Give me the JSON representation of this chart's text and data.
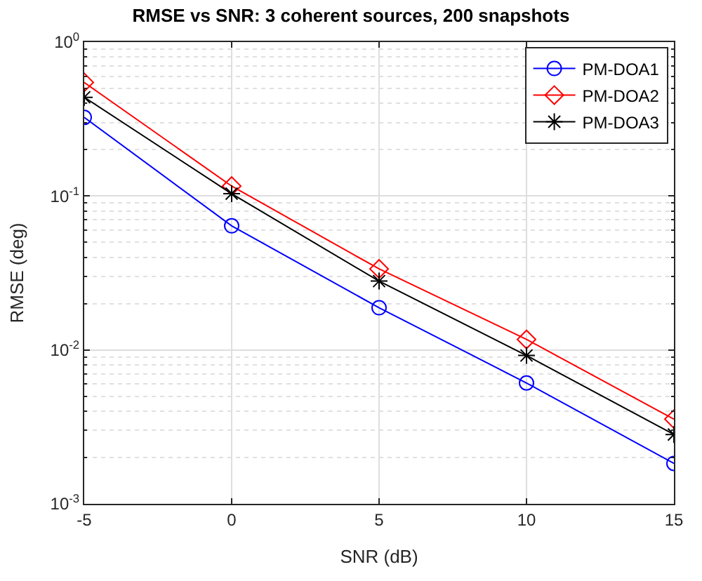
{
  "chart_data": {
    "type": "line",
    "title": "RMSE vs SNR: 3 coherent sources, 200 snapshots",
    "xlabel": "SNR (dB)",
    "ylabel": "RMSE (deg)",
    "x": [
      -5,
      0,
      5,
      10,
      15
    ],
    "series": [
      {
        "name": "PM-DOA1",
        "color": "#0000ff",
        "marker": "circle",
        "values": [
          0.324,
          0.064,
          0.0188,
          0.0061,
          0.00183
        ]
      },
      {
        "name": "PM-DOA2",
        "color": "#ff0000",
        "marker": "diamond",
        "values": [
          0.547,
          0.116,
          0.0336,
          0.0117,
          0.00355
        ]
      },
      {
        "name": "PM-DOA3",
        "color": "#000000",
        "marker": "cross",
        "values": [
          0.438,
          0.1035,
          0.028,
          0.0092,
          0.00282
        ]
      }
    ],
    "log": "y",
    "xlim": [
      -5,
      15
    ],
    "xticks": [
      -5,
      0,
      5,
      10,
      15
    ],
    "ylim": [
      0.001,
      1
    ],
    "yticks": [
      {
        "value": 1,
        "label": "10$^{0}$"
      },
      {
        "value": 0.1,
        "label": "10$^{-1}$"
      },
      {
        "value": 0.01,
        "label": "10$^{-2}$"
      },
      {
        "value": 0.001,
        "label": "10$^{-3}$"
      }
    ],
    "grid": true,
    "legend": "top right",
    "line_style": "solid"
  }
}
